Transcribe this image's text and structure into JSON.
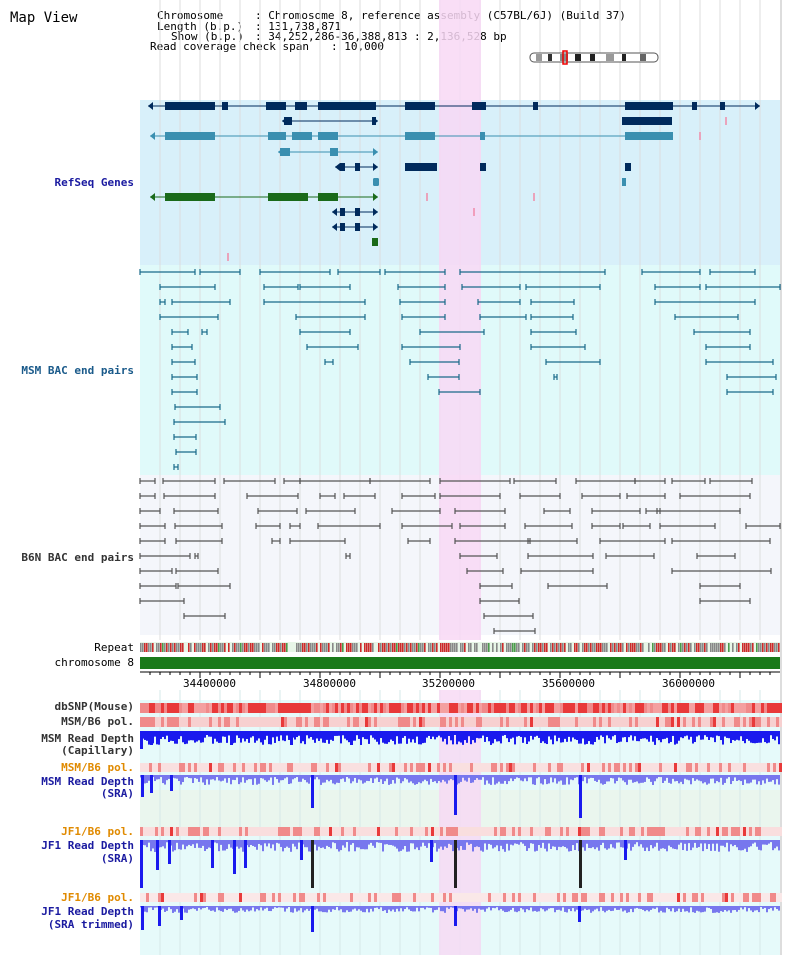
{
  "title": "Map View",
  "header": {
    "chromosome_label": "Chromosome",
    "chromosome_value": ": Chromosome 8, reference assembly (C57BL/6J) (Build 37)",
    "length_label": "Length (b.p.)",
    "length_value": ": 131,738,871",
    "show_label": "Show (b.p.)",
    "show_value": ": 34,252,286-36,388,813 : 2,136,528 bp",
    "coverage_label": "Read coverage check span",
    "coverage_value": ": 10,000"
  },
  "tracks": {
    "refseq": "RefSeq Genes",
    "msm_bac": "MSM BAC end pairs",
    "b6n_bac": "B6N BAC end pairs",
    "repeat": "Repeat",
    "chromosome": "chromosome 8",
    "dbsnp": "dbSNP(Mouse)",
    "msm_b6_pol_1": "MSM/B6 pol.",
    "msm_depth_cap_1": "MSM Read Depth",
    "msm_depth_cap_2": "(Capillary)",
    "msm_b6_pol_2": "MSM/B6 pol.",
    "msm_depth_sra_1": "MSM Read Depth",
    "msm_depth_sra_2": "(SRA)",
    "jf1_b6_pol_1": "JF1/B6 pol.",
    "jf1_depth_sra_1": "JF1 Read Depth",
    "jf1_depth_sra_2": "(SRA)",
    "jf1_b6_pol_2": "JF1/B6 pol.",
    "jf1_depth_trim_1": "JF1 Read Depth",
    "jf1_depth_trim_2": "(SRA trimmed)"
  },
  "axis": {
    "ticks": [
      "34400000",
      "34800000",
      "35200000",
      "35600000",
      "36000000"
    ]
  },
  "colors": {
    "refseq_bg": "#d8f0fa",
    "msm_bg": "#e0fafa",
    "b6n_bg": "#f4f6fb",
    "highlight": "#f8d8f4",
    "chromosome": "#1a7a1a",
    "gene_dark": "#002a5c",
    "gene_teal": "#3a8fb0",
    "gene_green": "#1a6a1a",
    "bac_teal": "#1a6a8a",
    "bac_gray": "#555555",
    "depth_blue": "#1a1aee",
    "depth_violet": "#7777ee"
  }
}
